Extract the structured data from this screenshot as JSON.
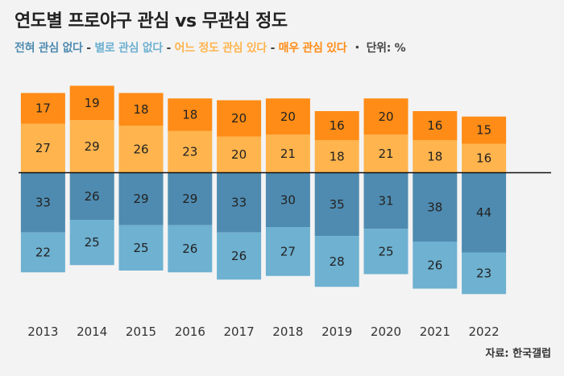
{
  "title": "연도별 프로야구 관심 vs 무관심 정도",
  "legend": {
    "items": [
      {
        "label": "전혀 관심 없다",
        "color": "#4f8bb0"
      },
      {
        "label": "별로 관심 없다",
        "color": "#6eb1d1"
      },
      {
        "label": "어느 정도 관심 있다",
        "color": "#ffb44d"
      },
      {
        "label": "매우 관심 있다",
        "color": "#ff8c16"
      }
    ],
    "separator": " - ",
    "unit": "・ 단위: %"
  },
  "source": "자료: 한국갤럽",
  "chart_data": {
    "type": "bar",
    "stacked": "diverging",
    "categories": [
      "2013",
      "2014",
      "2015",
      "2016",
      "2017",
      "2018",
      "2019",
      "2020",
      "2021",
      "2022"
    ],
    "series": [
      {
        "name": "매우 관심 있다",
        "side": "positive",
        "color": "#ff8c16",
        "values": [
          17,
          19,
          18,
          18,
          20,
          20,
          16,
          20,
          16,
          15
        ]
      },
      {
        "name": "어느 정도 관심 있다",
        "side": "positive",
        "color": "#ffb44d",
        "values": [
          27,
          29,
          26,
          23,
          20,
          21,
          18,
          21,
          18,
          16
        ]
      },
      {
        "name": "별로 관심 없다",
        "side": "negative",
        "color": "#6eb1d1",
        "values": [
          22,
          25,
          25,
          26,
          26,
          27,
          28,
          25,
          26,
          23
        ]
      },
      {
        "name": "전혀 관심 없다",
        "side": "negative",
        "color": "#4f8bb0",
        "values": [
          33,
          26,
          29,
          29,
          33,
          30,
          35,
          31,
          38,
          44
        ]
      }
    ],
    "unit": "%"
  }
}
